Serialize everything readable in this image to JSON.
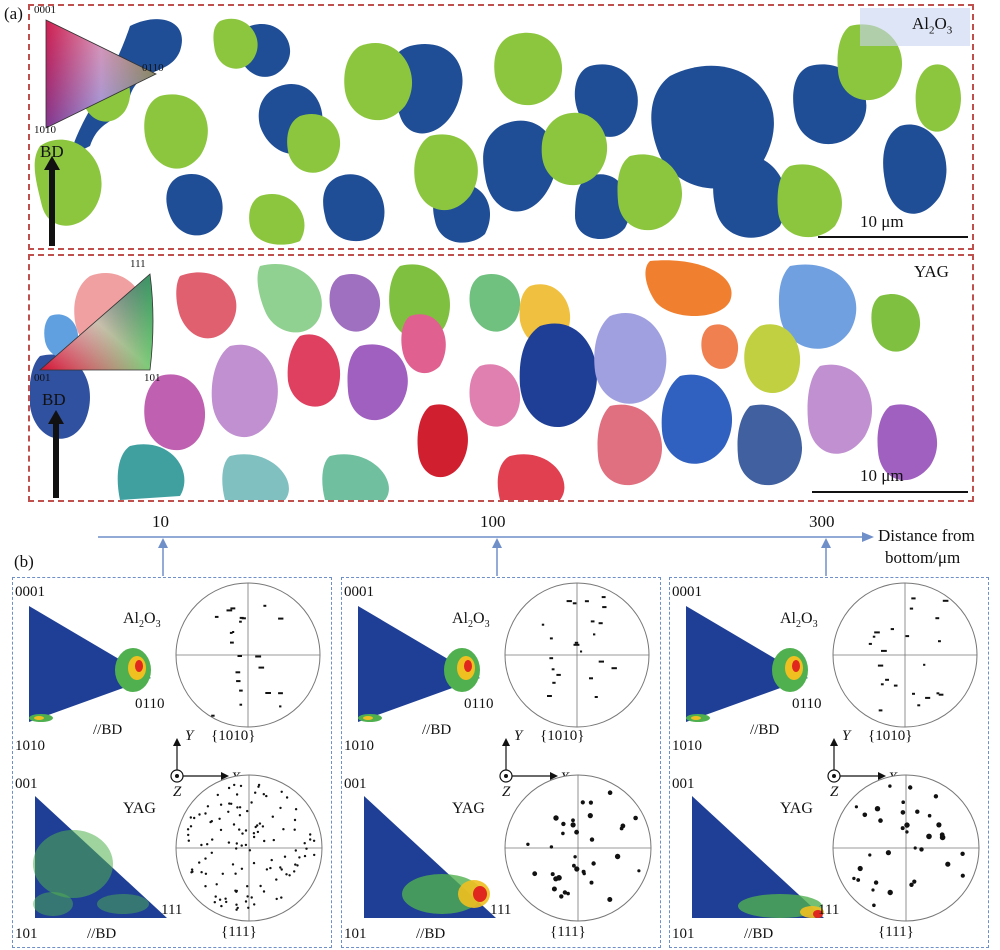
{
  "panel_a": {
    "label": "(a)",
    "al2o3_map": {
      "phase_label": "Al2O3",
      "phase_label_main": "Al",
      "phase_sub1": "2",
      "phase_mid": "O",
      "phase_sub2": "3",
      "ipf_key_labels": {
        "top": "0001",
        "right": "0110",
        "bottom": "1010"
      },
      "bd_label": "BD",
      "scale_label": "10 μm",
      "colors": {
        "green": "#8cc63f",
        "blue": "#1f4e96"
      }
    },
    "yag_map": {
      "phase_label": "YAG",
      "ipf_key_labels": {
        "top": "111",
        "left": "001",
        "right": "101"
      },
      "bd_label": "BD",
      "scale_label": "10 μm"
    }
  },
  "distance_axis": {
    "ticks": [
      "10",
      "100",
      "300"
    ],
    "axis_label_line1": "Distance from",
    "axis_label_line2": "bottom/μm",
    "color": "#6f8fc9"
  },
  "panel_b": {
    "label": "(b)",
    "columns": [
      {
        "distance": "10",
        "al2o3": {
          "phase_main": "Al",
          "sub1": "2",
          "mid": "O",
          "sub2": "3",
          "ipf_top": "0001",
          "ipf_right": "0110",
          "ipf_bottom": "1010",
          "ipf_axis": "//BD",
          "pf_label": "{1010}"
        },
        "yag": {
          "phase_label": "YAG",
          "ipf_top": "001",
          "ipf_left": "101",
          "ipf_right": "111",
          "ipf_axis": "//BD",
          "pf_label": "{111}"
        }
      },
      {
        "distance": "100",
        "al2o3": {
          "phase_main": "Al",
          "sub1": "2",
          "mid": "O",
          "sub2": "3",
          "ipf_top": "0001",
          "ipf_right": "0110",
          "ipf_bottom": "1010",
          "ipf_axis": "//BD",
          "pf_label": "{1010}"
        },
        "yag": {
          "phase_label": "YAG",
          "ipf_top": "001",
          "ipf_left": "101",
          "ipf_right": "111",
          "ipf_axis": "//BD",
          "pf_label": "{111}"
        }
      },
      {
        "distance": "300",
        "al2o3": {
          "phase_main": "Al",
          "sub1": "2",
          "mid": "O",
          "sub2": "3",
          "ipf_top": "0001",
          "ipf_right": "0110",
          "ipf_bottom": "1010",
          "ipf_axis": "//BD",
          "pf_label": "{1010}"
        },
        "yag": {
          "phase_label": "YAG",
          "ipf_top": "001",
          "ipf_left": "101",
          "ipf_right": "111",
          "ipf_axis": "//BD",
          "pf_label": "{111}"
        }
      }
    ],
    "coord_axes": {
      "y": "Y",
      "x": "X",
      "z": "Z"
    },
    "colors": {
      "ipf_base": "#1f3f96",
      "ipf_hot": "#e0281e"
    }
  }
}
